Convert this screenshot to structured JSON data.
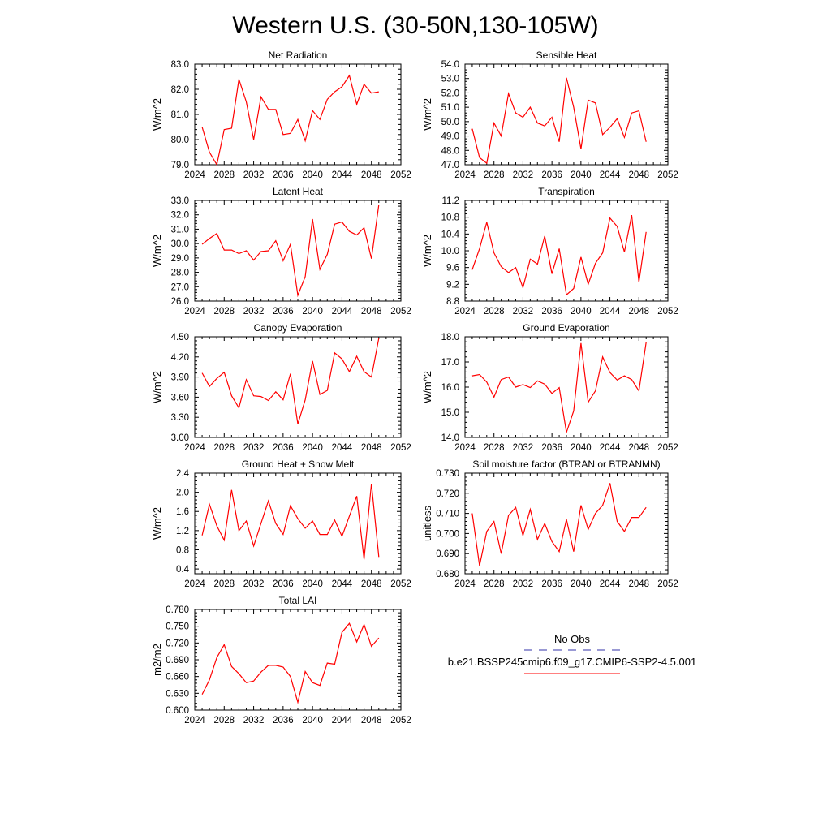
{
  "figure": {
    "title": "Western U.S. (30-50N,130-105W)",
    "line_color": "#ff0000",
    "obs_color": "#3333aa"
  },
  "legend": {
    "obs_label": "No Obs",
    "case_label": "b.e21.BSSP245cmip6.f09_g17.CMIP6-SSP2-4.5.001"
  },
  "chart_data": [
    {
      "type": "line",
      "title": "Net Radiation",
      "ylabel": "W/m^2",
      "xlim": [
        2024,
        2052
      ],
      "ylim": [
        79.0,
        83.0
      ],
      "xticks": [
        "2024",
        "2028",
        "2032",
        "2036",
        "2040",
        "2044",
        "2048",
        "2052"
      ],
      "yticks": [
        "79.0",
        "80.0",
        "81.0",
        "82.0",
        "83.0"
      ],
      "x": [
        2025,
        2026,
        2027,
        2028,
        2029,
        2030,
        2031,
        2032,
        2033,
        2034,
        2035,
        2036,
        2037,
        2038,
        2039,
        2040,
        2041,
        2042,
        2043,
        2044,
        2045,
        2046,
        2047,
        2048,
        2049
      ],
      "series": [
        {
          "values": [
            80.5,
            79.5,
            79.0,
            80.4,
            80.45,
            82.4,
            81.5,
            80.0,
            81.7,
            81.2,
            81.2,
            80.2,
            80.25,
            80.8,
            79.95,
            81.15,
            80.8,
            81.6,
            81.9,
            82.1,
            82.55,
            81.4,
            82.2,
            81.85,
            81.9
          ]
        }
      ]
    },
    {
      "type": "line",
      "title": "Sensible Heat",
      "ylabel": "W/m^2",
      "xlim": [
        2024,
        2052
      ],
      "ylim": [
        47.0,
        54.0
      ],
      "xticks": [
        "2024",
        "2028",
        "2032",
        "2036",
        "2040",
        "2044",
        "2048",
        "2052"
      ],
      "yticks": [
        "47.0",
        "48.0",
        "49.0",
        "50.0",
        "51.0",
        "52.0",
        "53.0",
        "54.0"
      ],
      "x": [
        2025,
        2026,
        2027,
        2028,
        2029,
        2030,
        2031,
        2032,
        2033,
        2034,
        2035,
        2036,
        2037,
        2038,
        2039,
        2040,
        2041,
        2042,
        2043,
        2044,
        2045,
        2046,
        2047,
        2048,
        2049
      ],
      "series": [
        {
          "values": [
            49.5,
            47.5,
            47.1,
            49.9,
            49.0,
            51.95,
            50.6,
            50.3,
            51.0,
            49.9,
            49.7,
            50.3,
            48.6,
            53.05,
            51.0,
            48.1,
            51.5,
            51.3,
            49.1,
            49.6,
            50.2,
            48.9,
            50.6,
            50.75,
            48.6
          ]
        }
      ]
    },
    {
      "type": "line",
      "title": "Latent Heat",
      "ylabel": "W/m^2",
      "xlim": [
        2024,
        2052
      ],
      "ylim": [
        26.0,
        33.0
      ],
      "xticks": [
        "2024",
        "2028",
        "2032",
        "2036",
        "2040",
        "2044",
        "2048",
        "2052"
      ],
      "yticks": [
        "26.0",
        "27.0",
        "28.0",
        "29.0",
        "30.0",
        "31.0",
        "32.0",
        "33.0"
      ],
      "x": [
        2025,
        2026,
        2027,
        2028,
        2029,
        2030,
        2031,
        2032,
        2033,
        2034,
        2035,
        2036,
        2037,
        2038,
        2039,
        2040,
        2041,
        2042,
        2043,
        2044,
        2045,
        2046,
        2047,
        2048,
        2049
      ],
      "series": [
        {
          "values": [
            29.95,
            30.35,
            30.7,
            29.55,
            29.55,
            29.3,
            29.5,
            28.85,
            29.45,
            29.5,
            30.2,
            28.8,
            29.95,
            26.4,
            27.7,
            31.7,
            28.2,
            29.25,
            31.35,
            31.5,
            30.85,
            30.6,
            31.1,
            28.95,
            32.7
          ]
        }
      ]
    },
    {
      "type": "line",
      "title": "Transpiration",
      "ylabel": "W/m^2",
      "xlim": [
        2024,
        2052
      ],
      "ylim": [
        8.8,
        11.2
      ],
      "xticks": [
        "2024",
        "2028",
        "2032",
        "2036",
        "2040",
        "2044",
        "2048",
        "2052"
      ],
      "yticks": [
        "8.8",
        "9.2",
        "9.6",
        "10.0",
        "10.4",
        "10.8",
        "11.2"
      ],
      "x": [
        2025,
        2026,
        2027,
        2028,
        2029,
        2030,
        2031,
        2032,
        2033,
        2034,
        2035,
        2036,
        2037,
        2038,
        2039,
        2040,
        2041,
        2042,
        2043,
        2044,
        2045,
        2046,
        2047,
        2048,
        2049
      ],
      "series": [
        {
          "values": [
            9.55,
            10.05,
            10.68,
            9.95,
            9.62,
            9.48,
            9.6,
            9.12,
            9.8,
            9.68,
            10.35,
            9.45,
            10.05,
            8.95,
            9.1,
            9.85,
            9.2,
            9.7,
            9.95,
            10.78,
            10.58,
            9.97,
            10.85,
            9.25,
            10.45
          ]
        }
      ]
    },
    {
      "type": "line",
      "title": "Canopy Evaporation",
      "ylabel": "W/m^2",
      "xlim": [
        2024,
        2052
      ],
      "ylim": [
        3.0,
        4.5
      ],
      "xticks": [
        "2024",
        "2028",
        "2032",
        "2036",
        "2040",
        "2044",
        "2048",
        "2052"
      ],
      "yticks": [
        "3.00",
        "3.30",
        "3.60",
        "3.90",
        "4.20",
        "4.50"
      ],
      "x": [
        2025,
        2026,
        2027,
        2028,
        2029,
        2030,
        2031,
        2032,
        2033,
        2034,
        2035,
        2036,
        2037,
        2038,
        2039,
        2040,
        2041,
        2042,
        2043,
        2044,
        2045,
        2046,
        2047,
        2048,
        2049
      ],
      "series": [
        {
          "values": [
            3.96,
            3.76,
            3.88,
            3.97,
            3.62,
            3.44,
            3.86,
            3.62,
            3.61,
            3.55,
            3.68,
            3.56,
            3.95,
            3.2,
            3.56,
            4.14,
            3.64,
            3.7,
            4.26,
            4.17,
            3.98,
            4.21,
            3.98,
            3.9,
            4.48
          ]
        }
      ]
    },
    {
      "type": "line",
      "title": "Ground Evaporation",
      "ylabel": "W/m^2",
      "xlim": [
        2024,
        2052
      ],
      "ylim": [
        14.0,
        18.0
      ],
      "xticks": [
        "2024",
        "2028",
        "2032",
        "2036",
        "2040",
        "2044",
        "2048",
        "2052"
      ],
      "yticks": [
        "14.0",
        "15.0",
        "16.0",
        "17.0",
        "18.0"
      ],
      "x": [
        2025,
        2026,
        2027,
        2028,
        2029,
        2030,
        2031,
        2032,
        2033,
        2034,
        2035,
        2036,
        2037,
        2038,
        2039,
        2040,
        2041,
        2042,
        2043,
        2044,
        2045,
        2046,
        2047,
        2048,
        2049
      ],
      "series": [
        {
          "values": [
            16.45,
            16.5,
            16.2,
            15.6,
            16.3,
            16.4,
            16.0,
            16.1,
            15.98,
            16.25,
            16.12,
            15.75,
            15.98,
            14.2,
            15.05,
            17.75,
            15.4,
            15.85,
            17.2,
            16.58,
            16.28,
            16.45,
            16.3,
            15.85,
            17.78
          ]
        }
      ]
    },
    {
      "type": "line",
      "title": "Ground Heat + Snow Melt",
      "ylabel": "W/m^2",
      "xlim": [
        2024,
        2052
      ],
      "ylim": [
        0.3,
        2.4
      ],
      "xticks": [
        "2024",
        "2028",
        "2032",
        "2036",
        "2040",
        "2044",
        "2048",
        "2052"
      ],
      "yticks": [
        "0.4",
        "0.8",
        "1.2",
        "1.6",
        "2.0",
        "2.4"
      ],
      "x": [
        2025,
        2026,
        2027,
        2028,
        2029,
        2030,
        2031,
        2032,
        2033,
        2034,
        2035,
        2036,
        2037,
        2038,
        2039,
        2040,
        2041,
        2042,
        2043,
        2044,
        2045,
        2046,
        2047,
        2048,
        2049
      ],
      "series": [
        {
          "values": [
            1.1,
            1.75,
            1.3,
            1.0,
            2.05,
            1.2,
            1.4,
            0.88,
            1.35,
            1.82,
            1.35,
            1.12,
            1.72,
            1.45,
            1.25,
            1.4,
            1.12,
            1.12,
            1.42,
            1.08,
            1.5,
            1.92,
            0.6,
            2.18,
            0.65
          ]
        }
      ]
    },
    {
      "type": "line",
      "title": "Soil moisture factor (BTRAN or BTRANMN)",
      "ylabel": "unitless",
      "xlim": [
        2024,
        2052
      ],
      "ylim": [
        0.68,
        0.73
      ],
      "xticks": [
        "2024",
        "2028",
        "2032",
        "2036",
        "2040",
        "2044",
        "2048",
        "2052"
      ],
      "yticks": [
        "0.680",
        "0.690",
        "0.700",
        "0.710",
        "0.720",
        "0.730"
      ],
      "x": [
        2025,
        2026,
        2027,
        2028,
        2029,
        2030,
        2031,
        2032,
        2033,
        2034,
        2035,
        2036,
        2037,
        2038,
        2039,
        2040,
        2041,
        2042,
        2043,
        2044,
        2045,
        2046,
        2047,
        2048,
        2049
      ],
      "series": [
        {
          "values": [
            0.71,
            0.684,
            0.701,
            0.706,
            0.69,
            0.709,
            0.713,
            0.699,
            0.712,
            0.697,
            0.705,
            0.696,
            0.691,
            0.707,
            0.691,
            0.714,
            0.702,
            0.71,
            0.714,
            0.725,
            0.706,
            0.701,
            0.708,
            0.708,
            0.713
          ]
        }
      ]
    },
    {
      "type": "line",
      "title": "Total LAI",
      "ylabel": "m2/m2",
      "xlim": [
        2024,
        2052
      ],
      "ylim": [
        0.6,
        0.78
      ],
      "xticks": [
        "2024",
        "2028",
        "2032",
        "2036",
        "2040",
        "2044",
        "2048",
        "2052"
      ],
      "yticks": [
        "0.600",
        "0.630",
        "0.660",
        "0.690",
        "0.720",
        "0.750",
        "0.780"
      ],
      "x": [
        2025,
        2026,
        2027,
        2028,
        2029,
        2030,
        2031,
        2032,
        2033,
        2034,
        2035,
        2036,
        2037,
        2038,
        2039,
        2040,
        2041,
        2042,
        2043,
        2044,
        2045,
        2046,
        2047,
        2048,
        2049
      ],
      "series": [
        {
          "values": [
            0.628,
            0.654,
            0.694,
            0.717,
            0.678,
            0.665,
            0.649,
            0.652,
            0.668,
            0.68,
            0.68,
            0.677,
            0.66,
            0.614,
            0.669,
            0.649,
            0.644,
            0.684,
            0.682,
            0.739,
            0.755,
            0.722,
            0.753,
            0.714,
            0.729
          ]
        }
      ]
    }
  ]
}
